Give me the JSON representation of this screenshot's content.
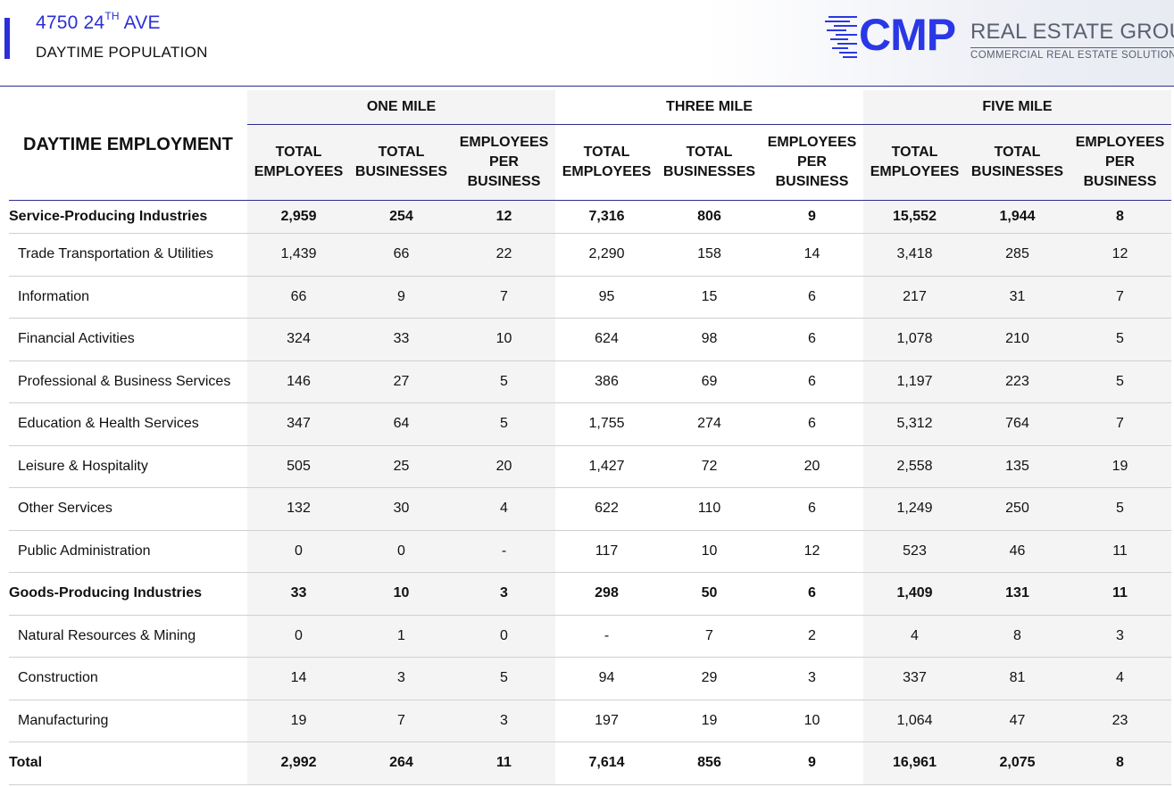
{
  "header": {
    "address_main": "4750 24",
    "address_sup": "TH",
    "address_rest": " AVE",
    "subtitle": "DAYTIME POPULATION"
  },
  "logo": {
    "brand": "CMP",
    "name": "REAL ESTATE GROUP",
    "tagline": "COMMERCIAL REAL ESTATE SOLUTIONS",
    "brand_color": "#2a37e6",
    "text_color": "#5a6070"
  },
  "table": {
    "title": "DAYTIME EMPLOYMENT",
    "groups": [
      "ONE MILE",
      "THREE MILE",
      "FIVE MILE"
    ],
    "columns": [
      "TOTAL EMPLOYEES",
      "TOTAL BUSINESSES",
      "EMPLOYEES PER BUSINESS"
    ],
    "rows": [
      {
        "label": "Service-Producing Industries",
        "bold": true,
        "values": [
          "2,959",
          "254",
          "12",
          "7,316",
          "806",
          "9",
          "15,552",
          "1,944",
          "8"
        ]
      },
      {
        "label": "Trade Transportation & Utilities",
        "bold": false,
        "values": [
          "1,439",
          "66",
          "22",
          "2,290",
          "158",
          "14",
          "3,418",
          "285",
          "12"
        ]
      },
      {
        "label": "Information",
        "bold": false,
        "values": [
          "66",
          "9",
          "7",
          "95",
          "15",
          "6",
          "217",
          "31",
          "7"
        ]
      },
      {
        "label": "Financial Activities",
        "bold": false,
        "values": [
          "324",
          "33",
          "10",
          "624",
          "98",
          "6",
          "1,078",
          "210",
          "5"
        ]
      },
      {
        "label": "Professional & Business Services",
        "bold": false,
        "values": [
          "146",
          "27",
          "5",
          "386",
          "69",
          "6",
          "1,197",
          "223",
          "5"
        ]
      },
      {
        "label": "Education & Health Services",
        "bold": false,
        "values": [
          "347",
          "64",
          "5",
          "1,755",
          "274",
          "6",
          "5,312",
          "764",
          "7"
        ]
      },
      {
        "label": "Leisure & Hospitality",
        "bold": false,
        "values": [
          "505",
          "25",
          "20",
          "1,427",
          "72",
          "20",
          "2,558",
          "135",
          "19"
        ]
      },
      {
        "label": "Other Services",
        "bold": false,
        "values": [
          "132",
          "30",
          "4",
          "622",
          "110",
          "6",
          "1,249",
          "250",
          "5"
        ]
      },
      {
        "label": "Public Administration",
        "bold": false,
        "values": [
          "0",
          "0",
          "-",
          "117",
          "10",
          "12",
          "523",
          "46",
          "11"
        ]
      },
      {
        "label": "Goods-Producing Industries",
        "bold": true,
        "values": [
          "33",
          "10",
          "3",
          "298",
          "50",
          "6",
          "1,409",
          "131",
          "11"
        ]
      },
      {
        "label": "Natural Resources & Mining",
        "bold": false,
        "values": [
          "0",
          "1",
          "0",
          "-",
          "7",
          "2",
          "4",
          "8",
          "3"
        ]
      },
      {
        "label": "Construction",
        "bold": false,
        "values": [
          "14",
          "3",
          "5",
          "94",
          "29",
          "3",
          "337",
          "81",
          "4"
        ]
      },
      {
        "label": "Manufacturing",
        "bold": false,
        "values": [
          "19",
          "7",
          "3",
          "197",
          "19",
          "10",
          "1,064",
          "47",
          "23"
        ]
      },
      {
        "label": "Total",
        "bold": true,
        "values": [
          "2,992",
          "264",
          "11",
          "7,614",
          "856",
          "9",
          "16,961",
          "2,075",
          "8"
        ]
      }
    ]
  }
}
